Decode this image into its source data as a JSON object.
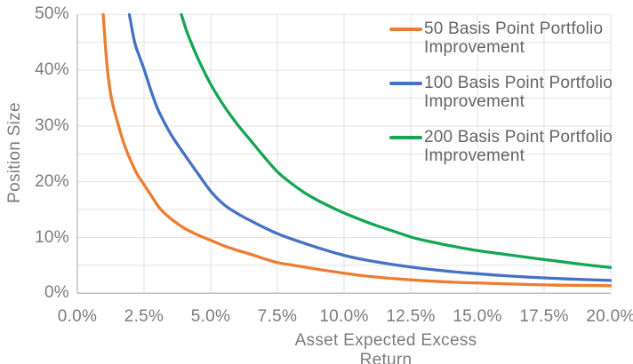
{
  "chart_data": {
    "type": "line",
    "title": "",
    "xlabel": "Asset Expected Excess Return",
    "ylabel": "Position Size",
    "xlim": [
      0,
      20
    ],
    "ylim": [
      0,
      50
    ],
    "x_tick_labels": [
      "0.0%",
      "2.5%",
      "5.0%",
      "7.5%",
      "10.0%",
      "12.5%",
      "15.0%",
      "17.5%",
      "20.0%"
    ],
    "y_tick_labels": [
      "0%",
      "10%",
      "20%",
      "30%",
      "40%",
      "50%"
    ],
    "y_tick_values": [
      0,
      10,
      20,
      30,
      40,
      50
    ],
    "x_tick_values": [
      0,
      2.5,
      5,
      7.5,
      10,
      12.5,
      15,
      17.5,
      20
    ],
    "y_gridline_step": 5,
    "x_gridline_step": 2.5,
    "grid": true,
    "legend_position": "inside-top-right",
    "series": [
      {
        "name": "50 Basis Point Portfolio Improvement",
        "legend_lines": [
          "50 Basis Point Portfolio",
          "Improvement"
        ],
        "color": "#ED7D31",
        "points": [
          [
            0.97,
            50
          ],
          [
            1.1,
            41.5
          ],
          [
            1.27,
            35.2
          ],
          [
            1.5,
            30.8
          ],
          [
            1.75,
            26.8
          ],
          [
            2.0,
            23.8
          ],
          [
            2.25,
            21.3
          ],
          [
            2.5,
            19.5
          ],
          [
            2.8,
            17.3
          ],
          [
            3.1,
            15.2
          ],
          [
            3.5,
            13.4
          ],
          [
            4.0,
            11.7
          ],
          [
            4.5,
            10.5
          ],
          [
            5.0,
            9.5
          ],
          [
            5.5,
            8.5
          ],
          [
            6.0,
            7.7
          ],
          [
            6.5,
            7.0
          ],
          [
            7.0,
            6.2
          ],
          [
            7.5,
            5.5
          ],
          [
            8.0,
            5.1
          ],
          [
            9.0,
            4.3
          ],
          [
            10.0,
            3.6
          ],
          [
            11.0,
            3.0
          ],
          [
            12.5,
            2.4
          ],
          [
            14.0,
            2.0
          ],
          [
            15.0,
            1.85
          ],
          [
            16.0,
            1.7
          ],
          [
            17.5,
            1.5
          ],
          [
            19.0,
            1.4
          ],
          [
            20.0,
            1.35
          ]
        ]
      },
      {
        "name": "100 Basis Point Portfolio Improvement",
        "legend_lines": [
          "100 Basis Point Portfolio",
          "Improvement"
        ],
        "color": "#4472C4",
        "points": [
          [
            1.95,
            50
          ],
          [
            2.15,
            45
          ],
          [
            2.35,
            42.2
          ],
          [
            2.5,
            40.2
          ],
          [
            2.75,
            36.5
          ],
          [
            3.0,
            33.2
          ],
          [
            3.3,
            30.3
          ],
          [
            3.6,
            27.8
          ],
          [
            4.0,
            25.0
          ],
          [
            4.5,
            21.6
          ],
          [
            5.0,
            18.3
          ],
          [
            5.5,
            15.9
          ],
          [
            6.0,
            14.3
          ],
          [
            6.5,
            13.0
          ],
          [
            7.0,
            11.8
          ],
          [
            7.5,
            10.7
          ],
          [
            8.0,
            9.8
          ],
          [
            9.0,
            8.2
          ],
          [
            10.0,
            6.8
          ],
          [
            11.0,
            5.8
          ],
          [
            12.5,
            4.7
          ],
          [
            14.0,
            3.9
          ],
          [
            15.0,
            3.5
          ],
          [
            16.0,
            3.15
          ],
          [
            17.5,
            2.75
          ],
          [
            19.0,
            2.45
          ],
          [
            20.0,
            2.3
          ]
        ]
      },
      {
        "name": "200 Basis Point Portfolio Improvement",
        "legend_lines": [
          "200 Basis Point Portfolio",
          "Improvement"
        ],
        "color": "#16A653",
        "points": [
          [
            3.9,
            50
          ],
          [
            4.1,
            47
          ],
          [
            4.35,
            44
          ],
          [
            4.6,
            41.3
          ],
          [
            5.0,
            37.5
          ],
          [
            5.5,
            33.6
          ],
          [
            6.0,
            30.3
          ],
          [
            6.5,
            27.4
          ],
          [
            7.0,
            24.5
          ],
          [
            7.5,
            21.8
          ],
          [
            8.0,
            19.8
          ],
          [
            8.5,
            18.1
          ],
          [
            9.0,
            16.7
          ],
          [
            9.5,
            15.5
          ],
          [
            10.0,
            14.4
          ],
          [
            11.0,
            12.5
          ],
          [
            12.0,
            10.9
          ],
          [
            12.5,
            10.1
          ],
          [
            13.0,
            9.5
          ],
          [
            14.0,
            8.5
          ],
          [
            15.0,
            7.65
          ],
          [
            16.0,
            7.0
          ],
          [
            17.0,
            6.35
          ],
          [
            17.5,
            6.05
          ],
          [
            18.0,
            5.75
          ],
          [
            19.0,
            5.15
          ],
          [
            20.0,
            4.6
          ]
        ]
      }
    ],
    "colors": {
      "background": "#FFFFFF",
      "gridline": "#E2E2E2",
      "axis_line": "#B7B7B7",
      "tick_text": "#7C7C7C",
      "legend_text": "#646464"
    }
  }
}
